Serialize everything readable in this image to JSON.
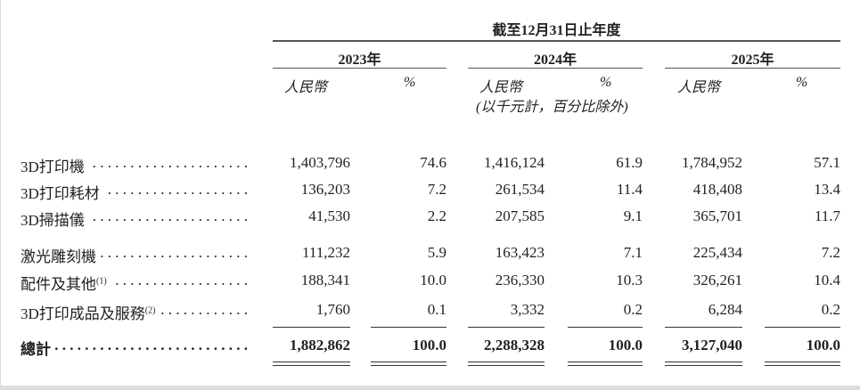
{
  "header": {
    "period_title": "截至12月31日止年度",
    "years": [
      "2023年",
      "2024年",
      "2025年"
    ],
    "currency_label": "人民幣",
    "percent_label": "%",
    "unit_note": "(以千元計，百分比除外)"
  },
  "rows": [
    {
      "label": "3D打印機",
      "note": "",
      "values": [
        "1,403,796",
        "74.6",
        "1,416,124",
        "61.9",
        "1,784,952",
        "57.1"
      ]
    },
    {
      "label": "3D打印耗材",
      "note": "",
      "values": [
        "136,203",
        "7.2",
        "261,534",
        "11.4",
        "418,408",
        "13.4"
      ]
    },
    {
      "label": "3D掃描儀",
      "note": "",
      "values": [
        "41,530",
        "2.2",
        "207,585",
        "9.1",
        "365,701",
        "11.7"
      ]
    },
    {
      "label": "激光雕刻機",
      "note": "",
      "values": [
        "111,232",
        "5.9",
        "163,423",
        "7.1",
        "225,434",
        "7.2"
      ]
    },
    {
      "label": "配件及其他",
      "note": "(1)",
      "values": [
        "188,341",
        "10.0",
        "236,330",
        "10.3",
        "326,261",
        "10.4"
      ]
    },
    {
      "label": "3D打印成品及服務",
      "note": "(2)",
      "values": [
        "1,760",
        "0.1",
        "3,332",
        "0.2",
        "6,284",
        "0.2"
      ]
    }
  ],
  "total": {
    "label": "總計",
    "values": [
      "1,882,862",
      "100.0",
      "2,288,328",
      "100.0",
      "3,127,040",
      "100.0"
    ]
  }
}
